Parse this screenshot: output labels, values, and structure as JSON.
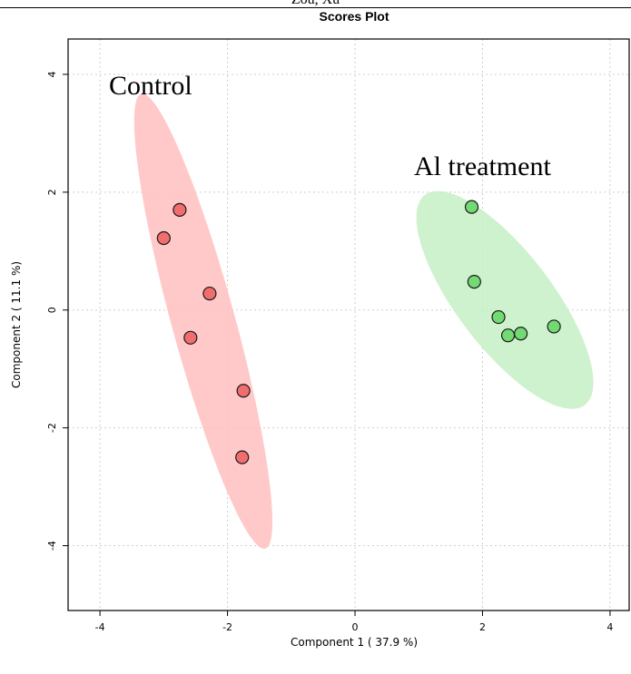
{
  "header_fragment": "Zou, Xu",
  "chart_data": {
    "type": "scatter",
    "title": "Scores Plot",
    "xlabel": "Component 1 ( 37.9 %)",
    "ylabel": "Component 2 ( 11.1 %)",
    "xlim": [
      -4.5,
      4.3
    ],
    "ylim": [
      -5.1,
      4.6
    ],
    "xticks": [
      -4,
      -2,
      0,
      2,
      4
    ],
    "yticks": [
      -4,
      -2,
      0,
      2,
      4
    ],
    "xtick_labels": [
      "-4",
      "-2",
      "0",
      "2",
      "4"
    ],
    "ytick_labels": [
      "-4",
      "-2",
      "0",
      "2",
      "4"
    ],
    "grid": true,
    "series": [
      {
        "name": "Control",
        "color": "#f06e6e",
        "ellipse_color": "#ffbfbf",
        "points": [
          [
            -3.0,
            1.22
          ],
          [
            -2.75,
            1.7
          ],
          [
            -2.28,
            0.28
          ],
          [
            -2.58,
            -0.47
          ],
          [
            -1.75,
            -1.37
          ],
          [
            -1.77,
            -2.5
          ]
        ],
        "ellipse": {
          "center": [
            -2.38,
            -0.19
          ],
          "semi_axes": [
            3.98,
            0.5
          ],
          "angle_deg": -75.9
        }
      },
      {
        "name": "Al treatment",
        "color": "#73d973",
        "ellipse_color": "#c6efc6",
        "points": [
          [
            1.83,
            1.75
          ],
          [
            1.87,
            0.48
          ],
          [
            2.25,
            -0.12
          ],
          [
            2.4,
            -0.43
          ],
          [
            2.6,
            -0.4
          ],
          [
            3.12,
            -0.28
          ]
        ],
        "ellipse": {
          "center": [
            2.35,
            0.17
          ],
          "semi_axes": [
            2.18,
            0.77
          ],
          "angle_deg": -55.5
        }
      }
    ]
  }
}
